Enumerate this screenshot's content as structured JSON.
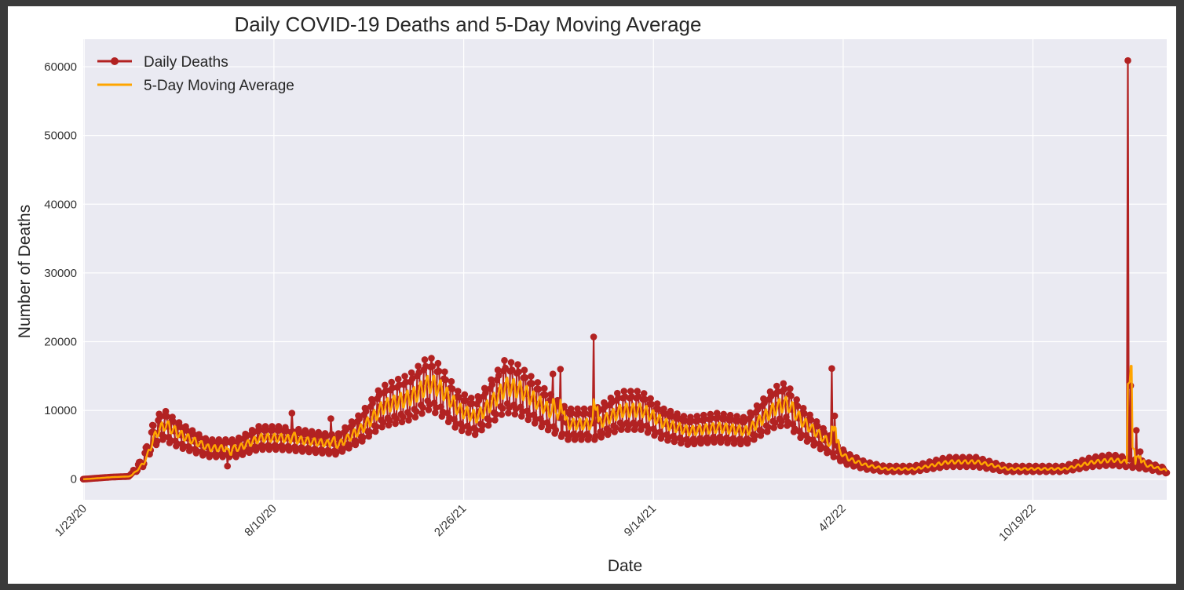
{
  "chart_data": {
    "type": "line",
    "title": "Daily COVID-19 Deaths and 5-Day Moving Average",
    "xlabel": "Date",
    "ylabel": "Number of Deaths",
    "x_range": [
      "2020-01-22",
      "2023-03-09"
    ],
    "ylim": [
      -3000,
      64000
    ],
    "y_ticks": [
      0,
      10000,
      20000,
      30000,
      40000,
      50000,
      60000
    ],
    "x_ticks": [
      {
        "date": "2020-01-23",
        "label": "1/23/20"
      },
      {
        "date": "2020-08-10",
        "label": "8/10/20"
      },
      {
        "date": "2021-02-26",
        "label": "2/26/21"
      },
      {
        "date": "2021-09-14",
        "label": "9/14/21"
      },
      {
        "date": "2022-04-02",
        "label": "4/2/22"
      },
      {
        "date": "2022-10-19",
        "label": "10/19/22"
      }
    ],
    "grid": true,
    "legend_position": "top-left",
    "series": [
      {
        "name": "Daily Deaths",
        "color": "#b22222",
        "marker": "circle",
        "daily_pattern_note": "",
        "anchors": [
          [
            "2020-01-22",
            0
          ],
          [
            "2020-02-20",
            300
          ],
          [
            "2020-03-10",
            400
          ],
          [
            "2020-03-25",
            2500
          ],
          [
            "2020-04-05",
            6500
          ],
          [
            "2020-04-15",
            8000
          ],
          [
            "2020-05-01",
            6500
          ],
          [
            "2020-06-01",
            4500
          ],
          [
            "2020-07-01",
            4500
          ],
          [
            "2020-07-25",
            6000
          ],
          [
            "2020-08-15",
            6000
          ],
          [
            "2020-09-15",
            5500
          ],
          [
            "2020-10-15",
            5000
          ],
          [
            "2020-11-10",
            7500
          ],
          [
            "2020-12-01",
            10500
          ],
          [
            "2021-01-01",
            12000
          ],
          [
            "2021-01-20",
            14000
          ],
          [
            "2021-02-01",
            13000
          ],
          [
            "2021-02-20",
            10000
          ],
          [
            "2021-03-10",
            9000
          ],
          [
            "2021-03-25",
            11000
          ],
          [
            "2021-04-10",
            13500
          ],
          [
            "2021-04-25",
            13000
          ],
          [
            "2021-05-20",
            10500
          ],
          [
            "2021-06-15",
            8000
          ],
          [
            "2021-07-15",
            8000
          ],
          [
            "2021-08-10",
            10000
          ],
          [
            "2021-09-01",
            10000
          ],
          [
            "2021-09-25",
            8000
          ],
          [
            "2021-10-20",
            7000
          ],
          [
            "2021-11-20",
            7500
          ],
          [
            "2021-12-20",
            7000
          ],
          [
            "2022-01-20",
            10500
          ],
          [
            "2022-02-01",
            11000
          ],
          [
            "2022-02-15",
            8500
          ],
          [
            "2022-03-10",
            6000
          ],
          [
            "2022-04-05",
            3000
          ],
          [
            "2022-04-25",
            2000
          ],
          [
            "2022-05-15",
            1500
          ],
          [
            "2022-06-15",
            1500
          ],
          [
            "2022-07-20",
            2500
          ],
          [
            "2022-08-20",
            2500
          ],
          [
            "2022-09-20",
            1500
          ],
          [
            "2022-10-20",
            1500
          ],
          [
            "2022-11-20",
            1500
          ],
          [
            "2022-12-20",
            2500
          ],
          [
            "2023-01-10",
            2800
          ],
          [
            "2023-01-25",
            2500
          ],
          [
            "2023-02-15",
            2000
          ],
          [
            "2023-03-09",
            1200
          ]
        ],
        "spikes": [
          [
            "2020-06-22",
            1900
          ],
          [
            "2020-08-29",
            9600
          ],
          [
            "2020-10-09",
            8800
          ],
          [
            "2021-05-31",
            15300
          ],
          [
            "2021-06-08",
            16000
          ],
          [
            "2021-07-13",
            20700
          ],
          [
            "2022-03-21",
            16100
          ],
          [
            "2022-03-24",
            9200
          ],
          [
            "2023-01-27",
            60900
          ],
          [
            "2023-01-30",
            13600
          ],
          [
            "2023-02-05",
            7100
          ],
          [
            "2023-02-09",
            4000
          ]
        ]
      },
      {
        "name": "5-Day Moving Average",
        "color": "#ffa500"
      }
    ]
  }
}
